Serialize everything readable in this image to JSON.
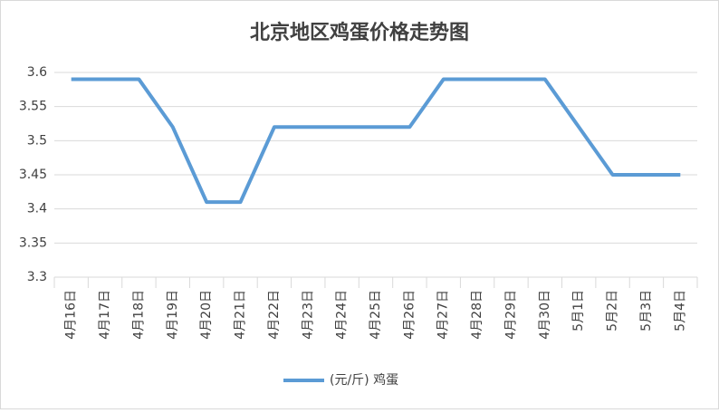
{
  "chart_data": {
    "type": "line",
    "title": "北京地区鸡蛋价格走势图",
    "categories": [
      "4月16日",
      "4月17日",
      "4月18日",
      "4月19日",
      "4月20日",
      "4月21日",
      "4月22日",
      "4月23日",
      "4月24日",
      "4月25日",
      "4月26日",
      "4月27日",
      "4月28日",
      "4月29日",
      "4月30日",
      "5月1日",
      "5月2日",
      "5月3日",
      "5月4日"
    ],
    "series": [
      {
        "name": "(元/斤) 鸡蛋",
        "color": "#5b9bd5",
        "values": [
          3.59,
          3.59,
          3.59,
          3.52,
          3.41,
          3.41,
          3.52,
          3.52,
          3.52,
          3.52,
          3.52,
          3.59,
          3.59,
          3.59,
          3.59,
          3.52,
          3.45,
          3.45,
          3.45
        ]
      }
    ],
    "ylim": [
      3.3,
      3.6
    ],
    "yticks": [
      3.3,
      3.35,
      3.4,
      3.45,
      3.5,
      3.55,
      3.6
    ],
    "grid": true,
    "legend": "bottom"
  }
}
